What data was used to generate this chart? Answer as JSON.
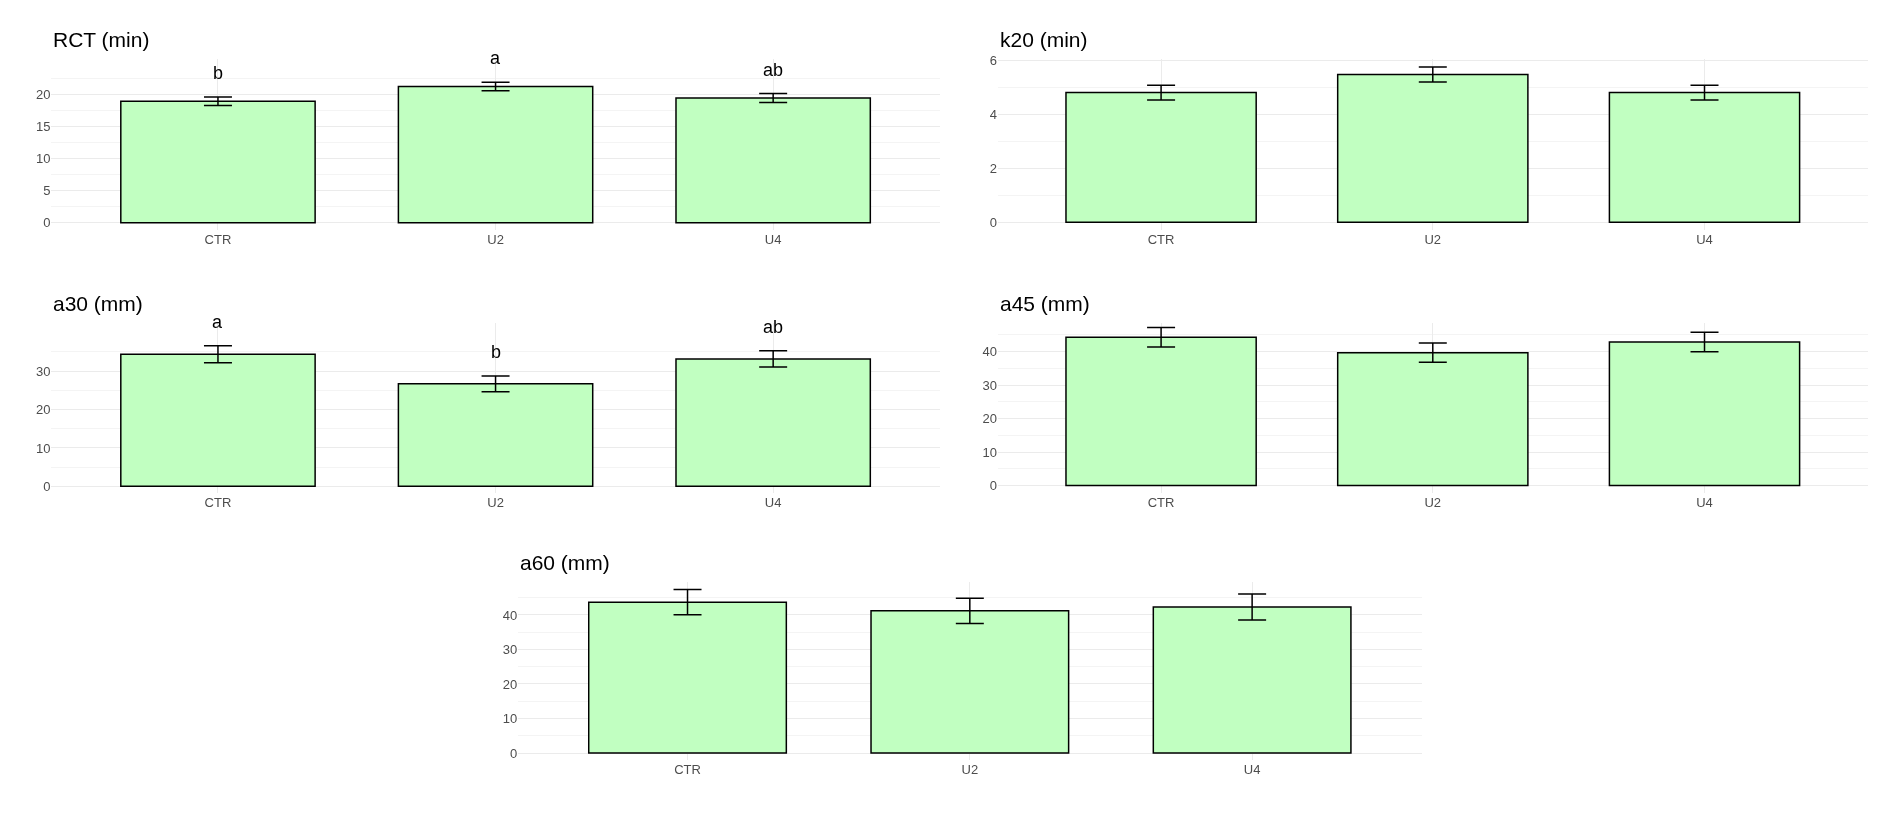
{
  "chart_data": [
    {
      "type": "bar",
      "title": "RCT (min)",
      "categories": [
        "CTR",
        "U2",
        "U4"
      ],
      "ylim": [
        -1.2,
        25.5
      ],
      "yticks": [
        0,
        5,
        10,
        15,
        20
      ],
      "grid": true,
      "annotations": [
        "b",
        "a",
        "ab"
      ],
      "series": [
        {
          "color": "#c1ffc1",
          "values": [
            18.9,
            21.2,
            19.4
          ],
          "errors": [
            0.65,
            0.65,
            0.7
          ]
        }
      ]
    },
    {
      "type": "bar",
      "title": "k20 (min)",
      "categories": [
        "CTR",
        "U2",
        "U4"
      ],
      "ylim": [
        -0.3,
        6.05
      ],
      "yticks": [
        0,
        2,
        4,
        6
      ],
      "grid": true,
      "series": [
        {
          "color": "#c1ffc1",
          "values": [
            4.8,
            5.47,
            4.8
          ],
          "errors": [
            0.27,
            0.28,
            0.27
          ]
        }
      ]
    },
    {
      "type": "bar",
      "title": "a30 (mm)",
      "categories": [
        "CTR",
        "U2",
        "U4"
      ],
      "ylim": [
        -1.8,
        42.5
      ],
      "yticks": [
        0,
        10,
        20,
        30
      ],
      "grid": true,
      "annotations": [
        "a",
        "b",
        "ab"
      ],
      "series": [
        {
          "color": "#c1ffc1",
          "values": [
            34.4,
            26.7,
            33.2
          ],
          "errors": [
            2.2,
            2.05,
            2.1
          ]
        }
      ]
    },
    {
      "type": "bar",
      "title": "a45 (mm)",
      "categories": [
        "CTR",
        "U2",
        "U4"
      ],
      "ylim": [
        -2.3,
        48.5
      ],
      "yticks": [
        0,
        10,
        20,
        30,
        40
      ],
      "grid": true,
      "series": [
        {
          "color": "#c1ffc1",
          "values": [
            44.3,
            39.7,
            42.9
          ],
          "errors": [
            2.9,
            2.9,
            2.9
          ]
        }
      ]
    },
    {
      "type": "bar",
      "title": "a60 (mm)",
      "categories": [
        "CTR",
        "U2",
        "U4"
      ],
      "ylim": [
        -2.0,
        49.5
      ],
      "yticks": [
        0,
        10,
        20,
        30,
        40
      ],
      "grid": true,
      "series": [
        {
          "color": "#c1ffc1",
          "values": [
            43.7,
            41.2,
            42.3
          ],
          "errors": [
            3.65,
            3.65,
            3.75
          ]
        }
      ]
    }
  ]
}
